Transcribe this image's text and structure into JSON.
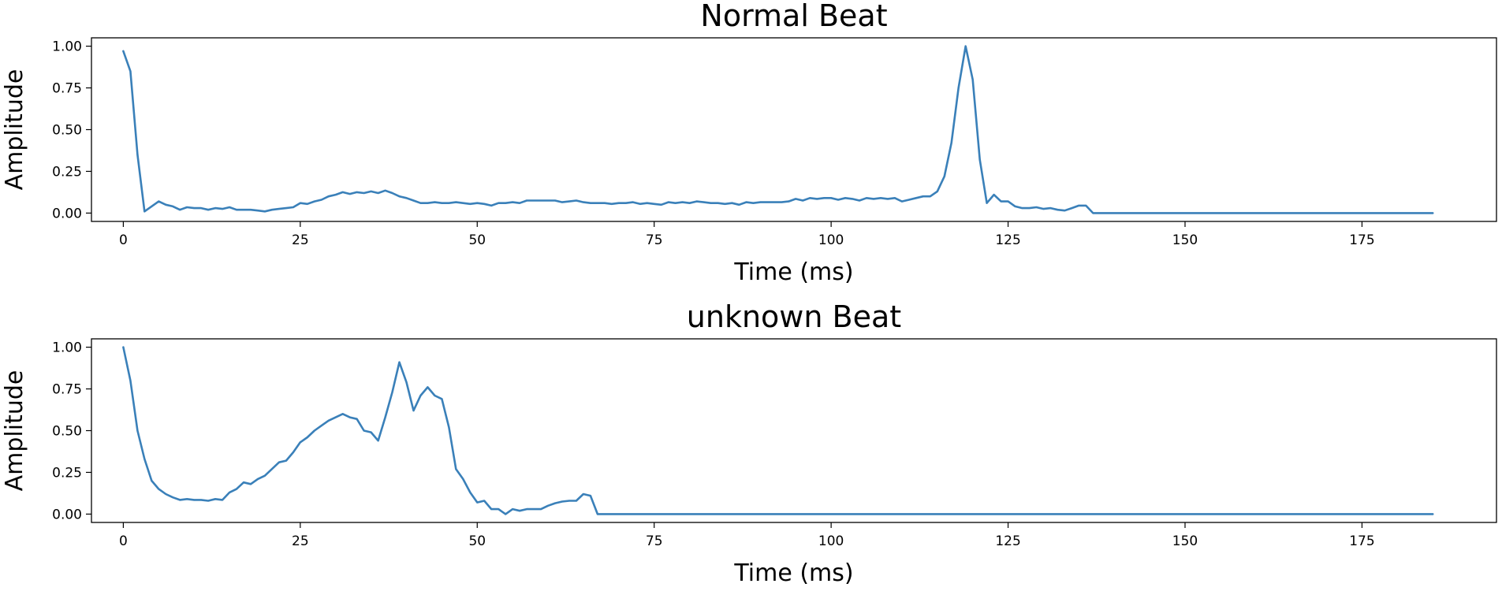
{
  "chart_data": [
    {
      "type": "line",
      "title": "Normal Beat",
      "xlabel": "Time (ms)",
      "ylabel": "Amplitude",
      "xlim": [
        -4.5,
        194
      ],
      "ylim": [
        -0.05,
        1.05
      ],
      "xticks": [
        0,
        25,
        50,
        75,
        100,
        125,
        150,
        175
      ],
      "xtick_labels": [
        "0",
        "25",
        "50",
        "75",
        "100",
        "125",
        "150",
        "175"
      ],
      "yticks": [
        0.0,
        0.25,
        0.5,
        0.75,
        1.0
      ],
      "ytick_labels": [
        "0.00",
        "0.25",
        "0.50",
        "0.75",
        "1.00"
      ],
      "grid": false,
      "color": "#3a80b9",
      "series": [
        {
          "x": [
            0,
            1,
            2,
            3,
            4,
            5,
            6,
            7,
            8,
            9,
            10,
            11,
            12,
            13,
            14,
            15,
            16,
            17,
            18,
            19,
            20,
            21,
            22,
            23,
            24,
            25,
            26,
            27,
            28,
            29,
            30,
            31,
            32,
            33,
            34,
            35,
            36,
            37,
            38,
            39,
            40,
            41,
            42,
            43,
            44,
            45,
            46,
            47,
            48,
            49,
            50,
            51,
            52,
            53,
            54,
            55,
            56,
            57,
            58,
            59,
            60,
            61,
            62,
            63,
            64,
            65,
            66,
            67,
            68,
            69,
            70,
            71,
            72,
            73,
            74,
            75,
            76,
            77,
            78,
            79,
            80,
            81,
            82,
            83,
            84,
            85,
            86,
            87,
            88,
            89,
            90,
            91,
            92,
            93,
            94,
            95,
            96,
            97,
            98,
            99,
            100,
            101,
            102,
            103,
            104,
            105,
            106,
            107,
            108,
            109,
            110,
            111,
            112,
            113,
            114,
            115,
            116,
            117,
            118,
            119,
            120,
            121,
            122,
            123,
            124,
            125,
            126,
            127,
            128,
            129,
            130,
            131,
            132,
            133,
            134,
            135,
            136,
            137,
            185
          ],
          "y": [
            0.97,
            0.85,
            0.35,
            0.01,
            0.04,
            0.07,
            0.05,
            0.04,
            0.02,
            0.035,
            0.03,
            0.03,
            0.02,
            0.03,
            0.025,
            0.035,
            0.02,
            0.02,
            0.02,
            0.015,
            0.01,
            0.02,
            0.025,
            0.03,
            0.035,
            0.06,
            0.055,
            0.07,
            0.08,
            0.1,
            0.11,
            0.125,
            0.115,
            0.125,
            0.12,
            0.13,
            0.12,
            0.135,
            0.12,
            0.1,
            0.09,
            0.075,
            0.06,
            0.06,
            0.065,
            0.06,
            0.06,
            0.065,
            0.06,
            0.055,
            0.06,
            0.055,
            0.045,
            0.06,
            0.06,
            0.065,
            0.06,
            0.075,
            0.075,
            0.075,
            0.075,
            0.075,
            0.065,
            0.07,
            0.075,
            0.065,
            0.06,
            0.06,
            0.06,
            0.055,
            0.06,
            0.06,
            0.065,
            0.055,
            0.06,
            0.055,
            0.05,
            0.065,
            0.06,
            0.065,
            0.06,
            0.07,
            0.065,
            0.06,
            0.06,
            0.055,
            0.06,
            0.05,
            0.065,
            0.06,
            0.065,
            0.065,
            0.065,
            0.065,
            0.07,
            0.085,
            0.075,
            0.09,
            0.085,
            0.09,
            0.09,
            0.08,
            0.09,
            0.085,
            0.075,
            0.09,
            0.085,
            0.09,
            0.085,
            0.09,
            0.07,
            0.08,
            0.09,
            0.1,
            0.1,
            0.13,
            0.22,
            0.42,
            0.75,
            1.0,
            0.8,
            0.32,
            0.06,
            0.11,
            0.07,
            0.07,
            0.04,
            0.03,
            0.03,
            0.035,
            0.025,
            0.03,
            0.02,
            0.015,
            0.03,
            0.045,
            0.045,
            0.0,
            0.0
          ]
        }
      ]
    },
    {
      "type": "line",
      "title": "unknown Beat",
      "xlabel": "Time (ms)",
      "ylabel": "Amplitude",
      "xlim": [
        -4.5,
        194
      ],
      "ylim": [
        -0.05,
        1.05
      ],
      "xticks": [
        0,
        25,
        50,
        75,
        100,
        125,
        150,
        175
      ],
      "xtick_labels": [
        "0",
        "25",
        "50",
        "75",
        "100",
        "125",
        "150",
        "175"
      ],
      "yticks": [
        0.0,
        0.25,
        0.5,
        0.75,
        1.0
      ],
      "ytick_labels": [
        "0.00",
        "0.25",
        "0.50",
        "0.75",
        "1.00"
      ],
      "grid": false,
      "color": "#3a80b9",
      "series": [
        {
          "x": [
            0,
            1,
            2,
            3,
            4,
            5,
            6,
            7,
            8,
            9,
            10,
            11,
            12,
            13,
            14,
            15,
            16,
            17,
            18,
            19,
            20,
            21,
            22,
            23,
            24,
            25,
            26,
            27,
            28,
            29,
            30,
            31,
            32,
            33,
            34,
            35,
            36,
            37,
            38,
            39,
            40,
            41,
            42,
            43,
            44,
            45,
            46,
            47,
            48,
            49,
            50,
            51,
            52,
            53,
            54,
            55,
            56,
            57,
            58,
            59,
            60,
            61,
            62,
            63,
            64,
            65,
            66,
            67,
            185
          ],
          "y": [
            1.0,
            0.8,
            0.5,
            0.33,
            0.2,
            0.15,
            0.12,
            0.1,
            0.085,
            0.09,
            0.085,
            0.085,
            0.08,
            0.09,
            0.085,
            0.13,
            0.15,
            0.19,
            0.18,
            0.21,
            0.23,
            0.27,
            0.31,
            0.32,
            0.37,
            0.43,
            0.46,
            0.5,
            0.53,
            0.56,
            0.58,
            0.6,
            0.58,
            0.57,
            0.5,
            0.49,
            0.44,
            0.58,
            0.73,
            0.91,
            0.79,
            0.62,
            0.71,
            0.76,
            0.71,
            0.69,
            0.52,
            0.27,
            0.21,
            0.13,
            0.07,
            0.08,
            0.03,
            0.03,
            0.0,
            0.03,
            0.02,
            0.03,
            0.03,
            0.03,
            0.05,
            0.065,
            0.075,
            0.08,
            0.08,
            0.12,
            0.11,
            0.0,
            0.0
          ]
        }
      ]
    }
  ]
}
